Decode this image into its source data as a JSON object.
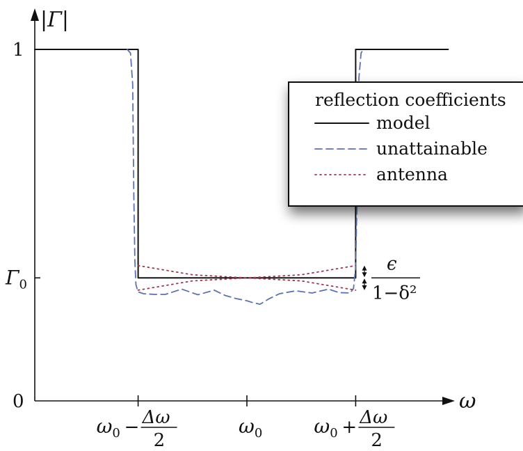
{
  "chart_data": {
    "type": "line",
    "title": "",
    "xlabel": "ω",
    "ylabel": "|Γ|",
    "x_ticks": [
      {
        "x": -1,
        "label": "ω₀ − Δω/2"
      },
      {
        "x": 0,
        "label": "ω₀"
      },
      {
        "x": 1,
        "label": "ω₀ + Δω/2"
      }
    ],
    "y_ticks": [
      {
        "y": 0,
        "label": "0"
      },
      {
        "y": 0.35,
        "label": "Γ₀"
      },
      {
        "y": 1,
        "label": "1"
      }
    ],
    "xlim": [
      -1.95,
      1.95
    ],
    "ylim": [
      0,
      1
    ],
    "grid": false,
    "legend": {
      "title": "reflection coefficients",
      "placement": "top-right",
      "entries": [
        "model",
        "unattainable",
        "antenna"
      ]
    },
    "annotation": {
      "label_numerator": "ϵ",
      "label_denominator": "1−δ²",
      "upper": 0.385,
      "center": 0.35,
      "lower": 0.315
    },
    "series": [
      {
        "name": "model",
        "color": "#111111",
        "style": "solid",
        "x": [
          -1.95,
          -1.0,
          -1.0,
          1.0,
          1.0,
          1.85
        ],
        "y": [
          1.0,
          1.0,
          0.35,
          0.35,
          1.0,
          1.0
        ]
      },
      {
        "name": "unattainable",
        "color": "#5b72b0",
        "style": "dashed",
        "x": [
          -1.1,
          -1.07,
          -1.05,
          -1.04,
          -1.03,
          -1.02,
          -1.0,
          -0.95,
          -0.85,
          -0.75,
          -0.6,
          -0.45,
          -0.3,
          -0.2,
          -0.1,
          0.0,
          0.05,
          0.12,
          0.2,
          0.3,
          0.45,
          0.6,
          0.75,
          0.85,
          0.95,
          0.98,
          1.0,
          1.02,
          1.03,
          1.05,
          1.07
        ],
        "y": [
          1.0,
          0.99,
          0.9,
          0.6,
          0.4,
          0.33,
          0.31,
          0.305,
          0.303,
          0.303,
          0.318,
          0.302,
          0.315,
          0.3,
          0.291,
          0.285,
          0.28,
          0.275,
          0.29,
          0.305,
          0.313,
          0.307,
          0.318,
          0.308,
          0.307,
          0.32,
          0.38,
          0.7,
          0.92,
          0.99,
          1.0
        ]
      },
      {
        "name": "antenna",
        "color": "#a0364a",
        "style": "dotted",
        "curves": [
          {
            "x": [
              -1.0,
              -0.5,
              0.0,
              0.5,
              1.0
            ],
            "y": [
              0.385,
              0.3588,
              0.35,
              0.3588,
              0.385
            ]
          },
          {
            "x": [
              -1.0,
              -0.5,
              0.0,
              0.5,
              1.0
            ],
            "y": [
              0.315,
              0.3413,
              0.35,
              0.3413,
              0.315
            ]
          }
        ]
      }
    ]
  }
}
